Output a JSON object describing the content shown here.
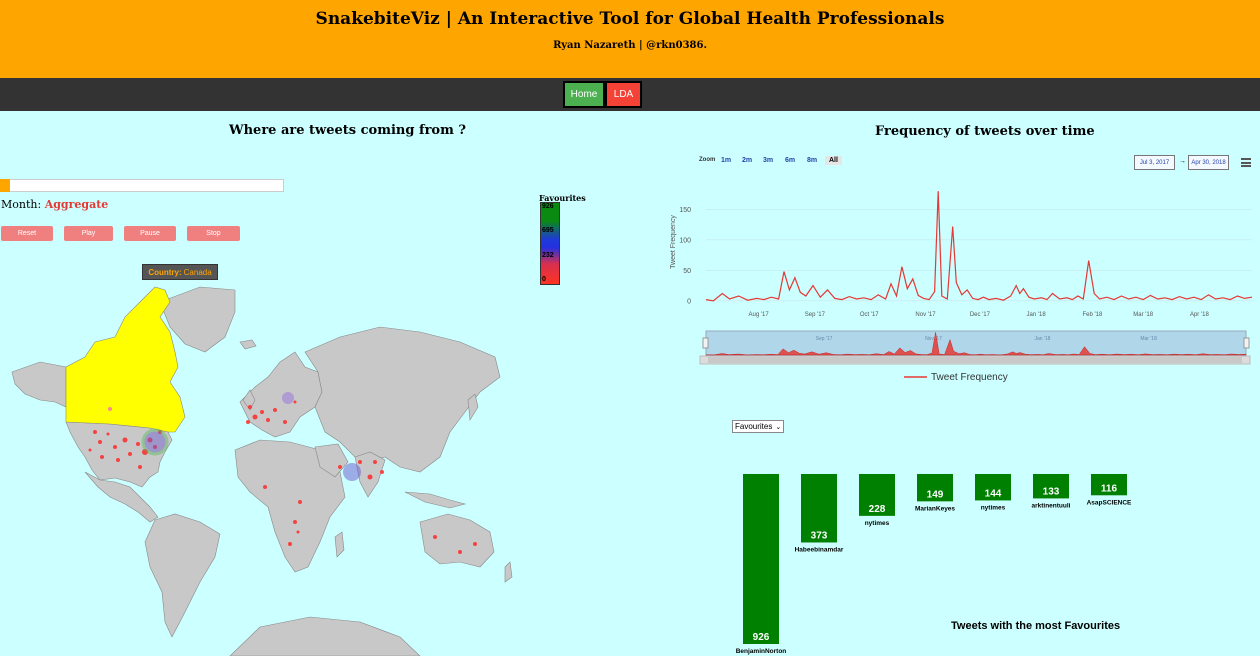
{
  "header": {
    "title": "SnakebiteViz | An Interactive Tool for Global Health Professionals",
    "subtitle": "Ryan Nazareth | @rkn0386."
  },
  "nav": {
    "home_label": "Home",
    "lda_label": "LDA"
  },
  "map_section": {
    "title": "Where are tweets coming from ?",
    "month_label": "Month:",
    "month_value": "Aggregate",
    "progress_fraction": 0.035,
    "controls": [
      "Reset",
      "Play",
      "Pause",
      "Stop"
    ],
    "legend": {
      "title": "Favourites",
      "ticks": [
        "926",
        "695",
        "232",
        "0"
      ]
    },
    "tooltip": {
      "key": "Country:",
      "value": "Canada"
    },
    "colors": {
      "highlight_country": "#ffff00",
      "land": "#c8c8c8",
      "points": "#ff2a2a"
    }
  },
  "timeline_section": {
    "title": "Frequency of tweets over time",
    "zoom_label": "Zoom",
    "zoom_options": [
      "1m",
      "2m",
      "3m",
      "6m",
      "8m",
      "All"
    ],
    "zoom_selected": "All",
    "date_from": "Jul 3, 2017",
    "date_to": "Apr 30, 2018",
    "date_arrow": "→",
    "menu_icon": "hamburger-menu-icon",
    "legend_label": "Tweet Frequency"
  },
  "bar_section": {
    "dropdown_value": "Favourites",
    "title": "Tweets with the most Favourites"
  },
  "chart_data": [
    {
      "type": "line",
      "title": "Frequency of tweets over time",
      "ylabel": "Tweet Frequency",
      "xlabel": "",
      "x_ticks": [
        "Aug '17",
        "Sep '17",
        "Oct '17",
        "Nov '17",
        "Dec '17",
        "Jan '18",
        "Feb '18",
        "Mar '18",
        "Apr '18"
      ],
      "y_ticks": [
        0,
        50,
        100,
        150
      ],
      "ylim": [
        -15,
        190
      ],
      "x_range": [
        "Jul 3, 2017",
        "Apr 30, 2018"
      ],
      "navigator_ticks": [
        "Sep '17",
        "Nov '17",
        "Jan '18",
        "Mar '18"
      ],
      "series": [
        {
          "name": "Tweet Frequency",
          "color": "#e53935",
          "points": [
            [
              "2017-07-03",
              2
            ],
            [
              "2017-07-07",
              0
            ],
            [
              "2017-07-12",
              12
            ],
            [
              "2017-07-16",
              3
            ],
            [
              "2017-07-21",
              8
            ],
            [
              "2017-07-26",
              1
            ],
            [
              "2017-07-31",
              4
            ],
            [
              "2017-08-04",
              2
            ],
            [
              "2017-08-08",
              6
            ],
            [
              "2017-08-12",
              3
            ],
            [
              "2017-08-15",
              48
            ],
            [
              "2017-08-18",
              18
            ],
            [
              "2017-08-21",
              38
            ],
            [
              "2017-08-24",
              14
            ],
            [
              "2017-08-27",
              8
            ],
            [
              "2017-08-31",
              25
            ],
            [
              "2017-09-04",
              6
            ],
            [
              "2017-09-08",
              18
            ],
            [
              "2017-09-12",
              4
            ],
            [
              "2017-09-16",
              2
            ],
            [
              "2017-09-20",
              7
            ],
            [
              "2017-09-24",
              3
            ],
            [
              "2017-09-28",
              5
            ],
            [
              "2017-10-02",
              2
            ],
            [
              "2017-10-06",
              10
            ],
            [
              "2017-10-10",
              3
            ],
            [
              "2017-10-13",
              28
            ],
            [
              "2017-10-16",
              8
            ],
            [
              "2017-10-19",
              56
            ],
            [
              "2017-10-22",
              20
            ],
            [
              "2017-10-25",
              36
            ],
            [
              "2017-10-28",
              9
            ],
            [
              "2017-10-31",
              4
            ],
            [
              "2017-11-03",
              2
            ],
            [
              "2017-11-06",
              15
            ],
            [
              "2017-11-08",
              180
            ],
            [
              "2017-11-10",
              8
            ],
            [
              "2017-11-13",
              3
            ],
            [
              "2017-11-16",
              122
            ],
            [
              "2017-11-18",
              30
            ],
            [
              "2017-11-21",
              10
            ],
            [
              "2017-11-24",
              18
            ],
            [
              "2017-11-27",
              4
            ],
            [
              "2017-11-30",
              2
            ],
            [
              "2017-12-03",
              6
            ],
            [
              "2017-12-06",
              2
            ],
            [
              "2017-12-10",
              4
            ],
            [
              "2017-12-14",
              1
            ],
            [
              "2017-12-18",
              8
            ],
            [
              "2017-12-21",
              25
            ],
            [
              "2017-12-23",
              12
            ],
            [
              "2017-12-25",
              20
            ],
            [
              "2017-12-28",
              6
            ],
            [
              "2017-12-31",
              3
            ],
            [
              "2018-01-04",
              5
            ],
            [
              "2018-01-07",
              2
            ],
            [
              "2018-01-10",
              12
            ],
            [
              "2018-01-14",
              3
            ],
            [
              "2018-01-18",
              5
            ],
            [
              "2018-01-21",
              2
            ],
            [
              "2018-01-24",
              8
            ],
            [
              "2018-01-27",
              3
            ],
            [
              "2018-01-30",
              66
            ],
            [
              "2018-02-02",
              12
            ],
            [
              "2018-02-05",
              3
            ],
            [
              "2018-02-09",
              6
            ],
            [
              "2018-02-13",
              2
            ],
            [
              "2018-02-17",
              8
            ],
            [
              "2018-02-21",
              3
            ],
            [
              "2018-02-25",
              6
            ],
            [
              "2018-03-01",
              2
            ],
            [
              "2018-03-05",
              9
            ],
            [
              "2018-03-09",
              3
            ],
            [
              "2018-03-13",
              5
            ],
            [
              "2018-03-17",
              2
            ],
            [
              "2018-03-21",
              7
            ],
            [
              "2018-03-25",
              3
            ],
            [
              "2018-03-29",
              6
            ],
            [
              "2018-04-02",
              2
            ],
            [
              "2018-04-06",
              10
            ],
            [
              "2018-04-10",
              3
            ],
            [
              "2018-04-14",
              5
            ],
            [
              "2018-04-18",
              2
            ],
            [
              "2018-04-22",
              8
            ],
            [
              "2018-04-26",
              4
            ],
            [
              "2018-04-30",
              6
            ]
          ]
        }
      ],
      "legend_position": "bottom"
    },
    {
      "type": "bar",
      "title": "Tweets with the most Favourites",
      "categories": [
        "BenjaminNorton",
        "Habeebinamdar",
        "nytimes",
        "MarianKeyes",
        "nytimes",
        "arktinentuuli",
        "AsapSCIENCE"
      ],
      "values": [
        926,
        373,
        228,
        149,
        144,
        133,
        116
      ],
      "color": "#008000",
      "direction": "downward"
    }
  ]
}
